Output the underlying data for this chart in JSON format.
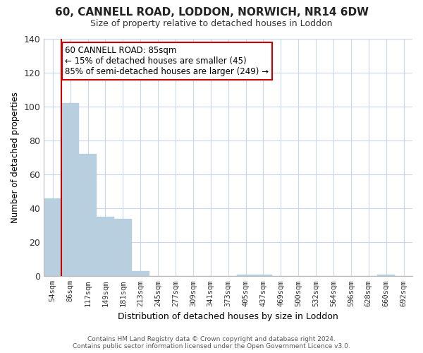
{
  "title": "60, CANNELL ROAD, LODDON, NORWICH, NR14 6DW",
  "subtitle": "Size of property relative to detached houses in Loddon",
  "xlabel": "Distribution of detached houses by size in Loddon",
  "ylabel": "Number of detached properties",
  "bar_labels": [
    "54sqm",
    "86sqm",
    "117sqm",
    "149sqm",
    "181sqm",
    "213sqm",
    "245sqm",
    "277sqm",
    "309sqm",
    "341sqm",
    "373sqm",
    "405sqm",
    "437sqm",
    "469sqm",
    "500sqm",
    "532sqm",
    "564sqm",
    "596sqm",
    "628sqm",
    "660sqm",
    "692sqm"
  ],
  "bar_values": [
    46,
    102,
    72,
    35,
    34,
    3,
    0,
    0,
    0,
    0,
    0,
    1,
    1,
    0,
    0,
    0,
    0,
    0,
    0,
    1,
    0
  ],
  "bar_color": "#b8cfe0",
  "highlight_color": "#cc0000",
  "red_line_x": 0.5,
  "ylim": [
    0,
    140
  ],
  "yticks": [
    0,
    20,
    40,
    60,
    80,
    100,
    120,
    140
  ],
  "annotation_title": "60 CANNELL ROAD: 85sqm",
  "annotation_line1": "← 15% of detached houses are smaller (45)",
  "annotation_line2": "85% of semi-detached houses are larger (249) →",
  "footer_line1": "Contains HM Land Registry data © Crown copyright and database right 2024.",
  "footer_line2": "Contains public sector information licensed under the Open Government Licence v3.0.",
  "background_color": "#ffffff",
  "grid_color": "#c8d8ea"
}
